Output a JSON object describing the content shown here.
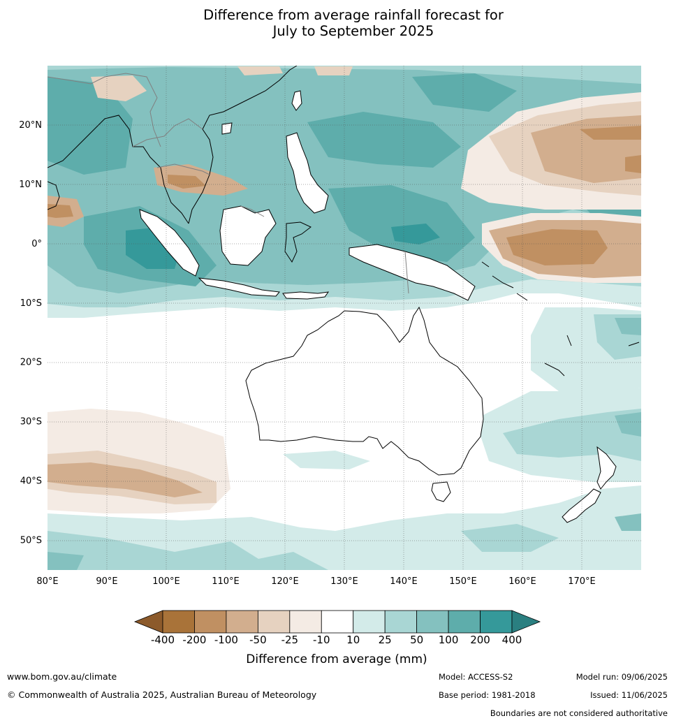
{
  "title": {
    "line1": "Difference from average rainfall forecast for",
    "line2": "July to September 2025"
  },
  "map": {
    "lon_labels": [
      "80°E",
      "90°E",
      "100°E",
      "110°E",
      "120°E",
      "130°E",
      "140°E",
      "150°E",
      "160°E",
      "170°E"
    ],
    "lon_values": [
      80,
      90,
      100,
      110,
      120,
      130,
      140,
      150,
      160,
      170
    ],
    "lat_labels": [
      "20°N",
      "10°N",
      "0°",
      "10°S",
      "20°S",
      "30°S",
      "40°S",
      "50°S"
    ],
    "lat_values": [
      20,
      10,
      0,
      -10,
      -20,
      -30,
      -40,
      -50
    ],
    "extent": {
      "lon": [
        80,
        180
      ],
      "lat": [
        -55,
        30
      ]
    },
    "land_color": "#ffffff",
    "coast_color": "#000000",
    "boundary_color": "#808080"
  },
  "legend": {
    "title": "Difference from average (mm)",
    "bounds": [
      "-400",
      "-200",
      "-100",
      "-50",
      "-25",
      "-10",
      "10",
      "25",
      "50",
      "100",
      "200",
      "400"
    ],
    "colors": [
      "#8c5a2b",
      "#a97339",
      "#c09062",
      "#d2ae8e",
      "#e6d2c0",
      "#f4ebe4",
      "#ffffff",
      "#d3ebe9",
      "#a9d6d4",
      "#84c1bf",
      "#5eadab",
      "#35999a",
      "#2a7f80"
    ]
  },
  "footer": {
    "website": "www.bom.gov.au/climate",
    "copyright": "© Commonwealth of Australia 2025, Australian Bureau of Meteorology",
    "model": "Model: ACCESS-S2",
    "base_period": "Base period: 1981-2018",
    "model_run": "Model run: 09/06/2025",
    "issued": "Issued: 11/06/2025",
    "disclaimer": "Boundaries are not considered authoritative"
  }
}
